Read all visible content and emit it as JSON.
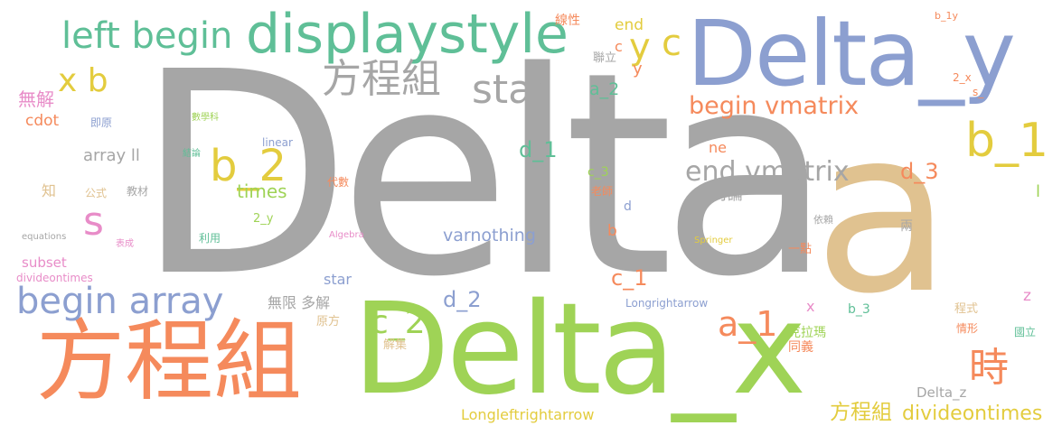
{
  "palette": {
    "gray": "#a6a6a6",
    "salmon": "#f58a5c",
    "green": "#9fd356",
    "blue": "#8c9fd0",
    "teal": "#5fbf97",
    "tan": "#e0c290",
    "yellow": "#e3cc3e",
    "pink": "#e88cc8"
  },
  "words": [
    {
      "text": "Delta",
      "color": "gray"
    },
    {
      "text": "a",
      "color": "tan"
    },
    {
      "text": "Delta_x",
      "color": "green"
    },
    {
      "text": "Delta_y",
      "color": "blue"
    },
    {
      "text": "方程組",
      "color": "salmon"
    },
    {
      "text": "displaystyle",
      "color": "teal"
    },
    {
      "text": "left begin",
      "color": "teal"
    },
    {
      "text": "begin array",
      "color": "blue"
    },
    {
      "text": "方程組",
      "color": "gray"
    },
    {
      "text": "star",
      "color": "gray"
    },
    {
      "text": "b_1",
      "color": "yellow"
    },
    {
      "text": "x b",
      "color": "yellow"
    },
    {
      "text": "b_2",
      "color": "yellow"
    },
    {
      "text": "end vmatrix",
      "color": "gray"
    },
    {
      "text": "begin vmatrix",
      "color": "salmon"
    },
    {
      "text": "時",
      "color": "salmon"
    },
    {
      "text": "a_1",
      "color": "salmon"
    },
    {
      "text": "c_2",
      "color": "green"
    },
    {
      "text": "s",
      "color": "pink"
    },
    {
      "text": "y",
      "color": "yellow"
    },
    {
      "text": "c",
      "color": "yellow"
    },
    {
      "text": "varnothing",
      "color": "blue"
    },
    {
      "text": "方程組",
      "color": "yellow"
    },
    {
      "text": "divideontimes",
      "color": "yellow"
    },
    {
      "text": "d_2",
      "color": "blue"
    },
    {
      "text": "Longleftrightarrow",
      "color": "yellow"
    },
    {
      "text": "times",
      "color": "green"
    },
    {
      "text": "d_3",
      "color": "salmon"
    },
    {
      "text": "c_1",
      "color": "salmon"
    },
    {
      "text": "d_1",
      "color": "teal"
    },
    {
      "text": "a_2",
      "color": "teal"
    },
    {
      "text": "無解",
      "color": "pink"
    },
    {
      "text": "cdot",
      "color": "salmon"
    },
    {
      "text": "array ll",
      "color": "gray"
    },
    {
      "text": "subset",
      "color": "pink"
    },
    {
      "text": "divideontimes",
      "color": "pink"
    },
    {
      "text": "無限 多解",
      "color": "gray"
    },
    {
      "text": "star",
      "color": "blue"
    },
    {
      "text": "Delta_z",
      "color": "gray"
    },
    {
      "text": "b_3",
      "color": "teal"
    },
    {
      "text": "end",
      "color": "yellow"
    },
    {
      "text": "c",
      "color": "salmon"
    },
    {
      "text": "y",
      "color": "salmon"
    },
    {
      "text": "ne",
      "color": "salmon"
    },
    {
      "text": "b",
      "color": "salmon"
    },
    {
      "text": "討論",
      "color": "gray"
    },
    {
      "text": "兩",
      "color": "gray"
    },
    {
      "text": "知",
      "color": "tan"
    },
    {
      "text": "公式",
      "color": "tan"
    },
    {
      "text": "利用",
      "color": "teal"
    },
    {
      "text": "線性",
      "color": "salmon"
    },
    {
      "text": "聯立",
      "color": "gray"
    },
    {
      "text": "c_3",
      "color": "green"
    },
    {
      "text": "老師",
      "color": "salmon"
    },
    {
      "text": "原方",
      "color": "tan"
    },
    {
      "text": "解集",
      "color": "tan"
    },
    {
      "text": "克拉瑪",
      "color": "green"
    },
    {
      "text": "x",
      "color": "pink"
    },
    {
      "text": "同義",
      "color": "salmon"
    },
    {
      "text": "程式",
      "color": "tan"
    },
    {
      "text": "情形",
      "color": "salmon"
    },
    {
      "text": "z",
      "color": "pink"
    },
    {
      "text": "國立",
      "color": "teal"
    },
    {
      "text": "一點",
      "color": "salmon"
    },
    {
      "text": "代數",
      "color": "salmon"
    },
    {
      "text": "即原",
      "color": "blue"
    },
    {
      "text": "2_y",
      "color": "green"
    },
    {
      "text": "linear",
      "color": "blue"
    },
    {
      "text": "d",
      "color": "blue"
    },
    {
      "text": "Longrightarrow",
      "color": "blue"
    },
    {
      "text": "l",
      "color": "green"
    },
    {
      "text": "b_1y",
      "color": "salmon"
    },
    {
      "text": "2_x",
      "color": "salmon"
    },
    {
      "text": "s_",
      "color": "salmon"
    },
    {
      "text": "教材",
      "color": "gray"
    },
    {
      "text": "數學科",
      "color": "green"
    },
    {
      "text": "結論",
      "color": "teal"
    },
    {
      "text": "表成",
      "color": "pink"
    },
    {
      "text": "Algebra",
      "color": "pink"
    },
    {
      "text": "Springer",
      "color": "yellow"
    },
    {
      "text": "依賴",
      "color": "gray"
    },
    {
      "text": "equations",
      "color": "gray"
    }
  ]
}
